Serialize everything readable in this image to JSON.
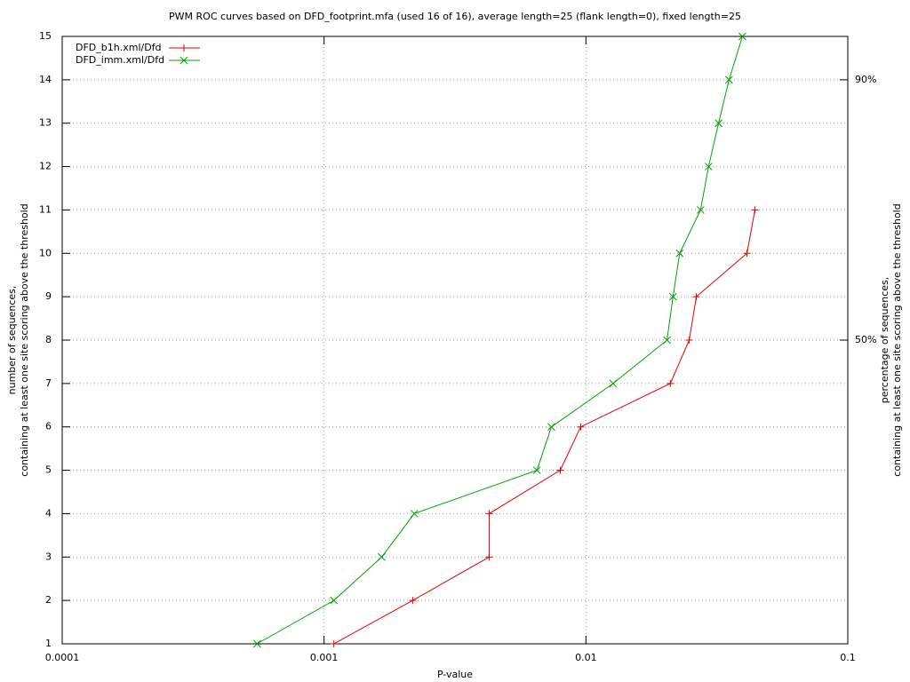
{
  "chart_data": {
    "type": "line",
    "title": "PWM ROC curves based on DFD_footprint.mfa (used 16 of 16), average length=25 (flank length=0), fixed length=25",
    "xlabel": "P-value",
    "ylabel": [
      "number of sequences,",
      "containing at least one site scoring above the threshold"
    ],
    "y2label": [
      "percentage of sequences,",
      "containing at least one site scoring above the threshold"
    ],
    "xscale": "log",
    "xlim": [
      0.0001,
      0.1
    ],
    "xticks": [
      0.0001,
      0.001,
      0.01,
      0.1
    ],
    "ylim": [
      1,
      15
    ],
    "yticks": [
      1,
      2,
      3,
      4,
      5,
      6,
      7,
      8,
      9,
      10,
      11,
      12,
      13,
      14,
      15
    ],
    "y2lim": [
      3.33,
      96.67
    ],
    "y2ticks": [
      {
        "value": 50,
        "label": "50%"
      },
      {
        "value": 90,
        "label": "90%"
      }
    ],
    "grid": true,
    "legend": "top-left",
    "series": [
      {
        "name": "DFD_b1h.xml/Dfd",
        "color": "#e00000",
        "marker": "plus",
        "x": [
          0.00109,
          0.00218,
          0.00427,
          0.00427,
          0.00798,
          0.00955,
          0.021,
          0.0248,
          0.0264,
          0.0412,
          0.0442
        ],
        "values": [
          1,
          2,
          3,
          4,
          5,
          6,
          7,
          8,
          9,
          10,
          11
        ]
      },
      {
        "name": "DFD_imm.xml/Dfd",
        "color": "#00a000",
        "marker": "cross",
        "x": [
          0.000555,
          0.00109,
          0.00166,
          0.00221,
          0.0065,
          0.00738,
          0.0127,
          0.0204,
          0.0215,
          0.0228,
          0.0274,
          0.0294,
          0.0321,
          0.0352,
          0.0396
        ],
        "values": [
          1,
          2,
          3,
          4,
          5,
          6,
          7,
          8,
          9,
          10,
          11,
          12,
          13,
          14,
          15
        ]
      }
    ]
  }
}
